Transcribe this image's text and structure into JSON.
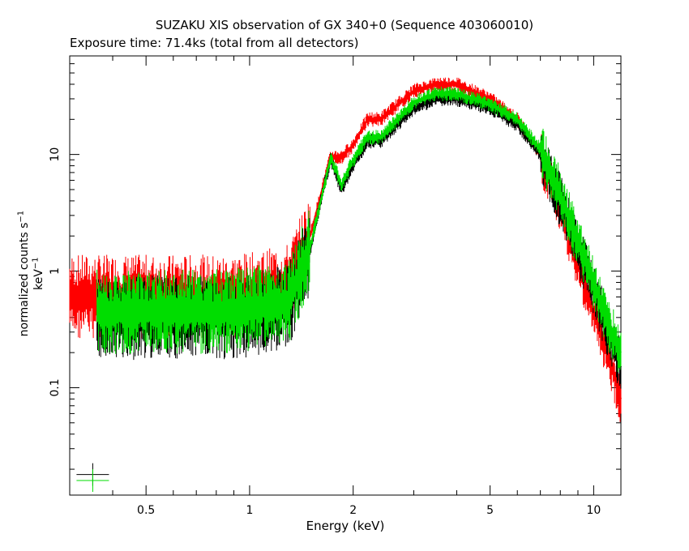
{
  "chart_data": {
    "type": "line",
    "title": "SUZAKU XIS observation of GX 340+0 (Sequence 403060010)",
    "subtitle": "Exposure time: 71.4ks (total from all detectors)",
    "xlabel": "Energy (keV)",
    "ylabel_main": "normalized counts s",
    "ylabel_exp1": "−1",
    "ylabel_mid": " keV",
    "ylabel_exp2": "−1",
    "xscale": "log",
    "yscale": "log",
    "xlim": [
      0.3,
      12
    ],
    "ylim": [
      0.012,
      70
    ],
    "xticks": [
      {
        "v": 0.5,
        "label": "0.5"
      },
      {
        "v": 1,
        "label": "1"
      },
      {
        "v": 2,
        "label": "2"
      },
      {
        "v": 5,
        "label": "5"
      },
      {
        "v": 10,
        "label": "10"
      }
    ],
    "yticks": [
      {
        "v": 0.1,
        "label": "0.1"
      },
      {
        "v": 1,
        "label": "1"
      },
      {
        "v": 10,
        "label": "10"
      }
    ],
    "series": [
      {
        "color": "#ff0000",
        "x": [
          0.3,
          0.5,
          0.8,
          1.0,
          1.3,
          1.5,
          1.65,
          1.72,
          1.85,
          2.0,
          2.2,
          2.4,
          3.0,
          3.5,
          4.0,
          5.0,
          6.0,
          7.0,
          8.0,
          9.0,
          10.0,
          11.0,
          12.0
        ],
        "y": [
          0.6,
          0.6,
          0.6,
          0.62,
          0.75,
          2.0,
          6.0,
          9.5,
          9.5,
          12.0,
          20.0,
          20.0,
          35.0,
          40.0,
          40.0,
          30.0,
          20.0,
          10.0,
          3.5,
          1.2,
          0.45,
          0.2,
          0.08
        ]
      },
      {
        "color": "#000000",
        "x": [
          0.36,
          0.5,
          0.8,
          1.0,
          1.3,
          1.5,
          1.65,
          1.72,
          1.85,
          2.0,
          2.2,
          2.4,
          3.0,
          3.5,
          4.0,
          5.0,
          6.0,
          7.0,
          8.0,
          9.0,
          10.0,
          11.0,
          12.0
        ],
        "y": [
          0.4,
          0.4,
          0.4,
          0.42,
          0.5,
          1.5,
          5.5,
          9.0,
          5.0,
          8.0,
          13.0,
          13.0,
          25.0,
          30.0,
          30.0,
          25.0,
          18.0,
          10.0,
          4.0,
          1.6,
          0.7,
          0.3,
          0.15
        ]
      },
      {
        "color": "#00dd00",
        "x": [
          0.36,
          0.5,
          0.8,
          1.0,
          1.3,
          1.5,
          1.65,
          1.72,
          1.85,
          2.0,
          2.2,
          2.4,
          3.0,
          3.5,
          4.0,
          5.0,
          6.0,
          7.0,
          8.0,
          9.0,
          10.0,
          11.0,
          12.0
        ],
        "y": [
          0.45,
          0.45,
          0.45,
          0.47,
          0.55,
          1.6,
          5.5,
          9.5,
          5.5,
          9.0,
          14.0,
          14.0,
          28.0,
          33.0,
          33.0,
          27.0,
          20.0,
          11.0,
          4.5,
          1.8,
          0.8,
          0.35,
          0.2
        ]
      }
    ],
    "legend_marks": [
      {
        "color": "#000000",
        "x": 0.35,
        "y": 0.018
      },
      {
        "color": "#00dd00",
        "x": 0.35,
        "y": 0.016
      }
    ]
  }
}
